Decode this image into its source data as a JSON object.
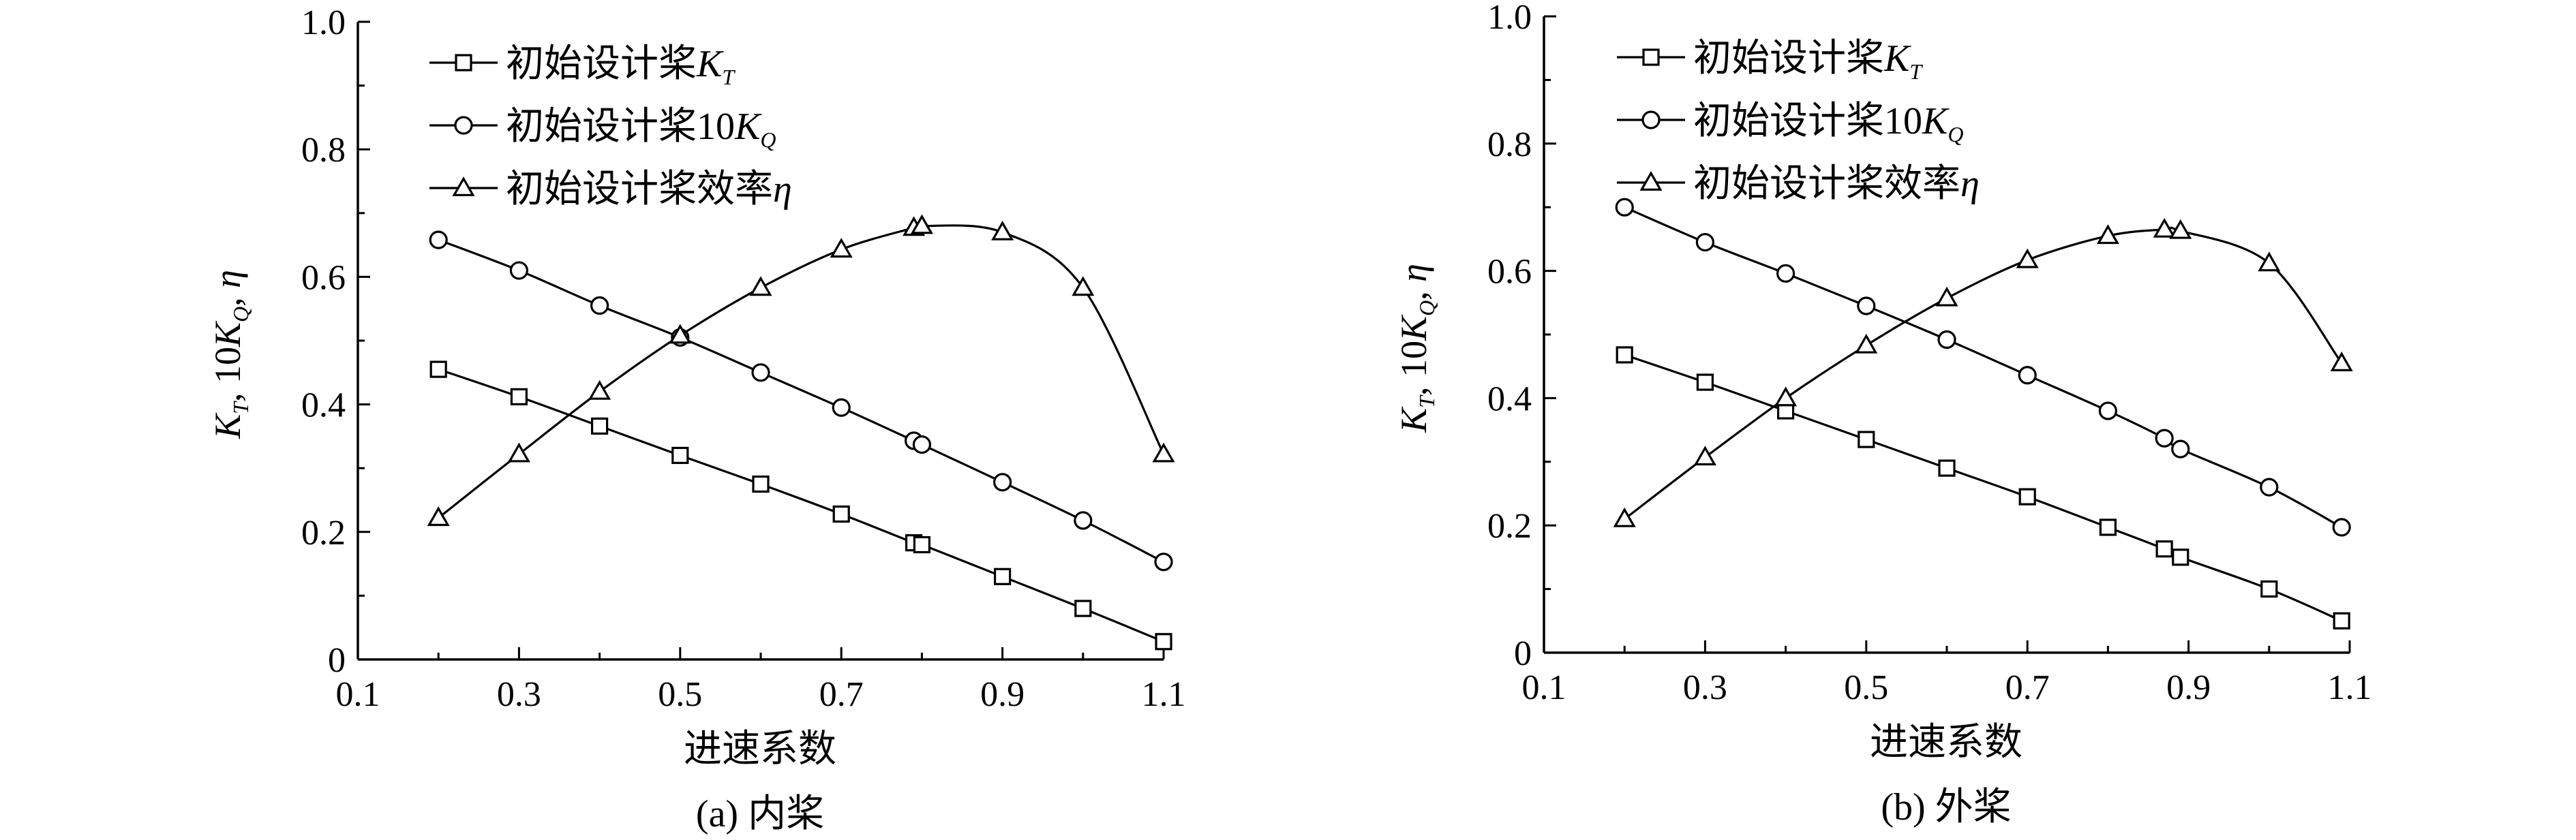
{
  "chart_data": [
    {
      "type": "line",
      "caption": "(a) 内桨",
      "xlabel": "进速系数",
      "ylabel_parts": [
        "K",
        "T",
        ", 10K",
        "Q",
        ", η"
      ],
      "xlim": [
        0.1,
        1.1
      ],
      "ylim": [
        0,
        1.0
      ],
      "xticks": [
        "0.1",
        "0.3",
        "0.5",
        "0.7",
        "0.9",
        "1.1"
      ],
      "yticks": [
        "0",
        "0.2",
        "0.4",
        "0.6",
        "0.8",
        "1.0"
      ],
      "xtick_values": [
        0.1,
        0.3,
        0.5,
        0.7,
        0.9,
        1.1
      ],
      "ytick_values": [
        0,
        0.2,
        0.4,
        0.6,
        0.8,
        1.0
      ],
      "legend_position": "top-left",
      "grid": false,
      "series": [
        {
          "name": "初始设计桨K_T",
          "legend_text": "初始设计桨",
          "legend_italic": "K",
          "legend_sub": "T",
          "marker": "square",
          "x": [
            0.2,
            0.3,
            0.4,
            0.5,
            0.6,
            0.7,
            0.79,
            0.8,
            0.9,
            1.0,
            1.1
          ],
          "y": [
            0.455,
            0.412,
            0.366,
            0.32,
            0.275,
            0.228,
            0.183,
            0.18,
            0.13,
            0.08,
            0.028
          ]
        },
        {
          "name": "初始设计桨10K_Q",
          "legend_text": "初始设计桨10",
          "legend_italic": "K",
          "legend_sub": "Q",
          "marker": "circle",
          "x": [
            0.2,
            0.3,
            0.4,
            0.5,
            0.6,
            0.7,
            0.79,
            0.8,
            0.9,
            1.0,
            1.1
          ],
          "y": [
            0.658,
            0.61,
            0.555,
            0.505,
            0.45,
            0.395,
            0.343,
            0.337,
            0.278,
            0.218,
            0.153
          ]
        },
        {
          "name": "初始设计桨效率η",
          "legend_text": "初始设计桨效率",
          "legend_italic": "η",
          "legend_sub": "",
          "marker": "triangle",
          "x": [
            0.2,
            0.3,
            0.4,
            0.5,
            0.6,
            0.7,
            0.79,
            0.8,
            0.9,
            1.0,
            1.1
          ],
          "y": [
            0.222,
            0.322,
            0.42,
            0.508,
            0.583,
            0.643,
            0.677,
            0.68,
            0.67,
            0.583,
            0.322
          ]
        }
      ]
    },
    {
      "type": "line",
      "caption": "(b) 外桨",
      "xlabel": "进速系数",
      "ylabel_parts": [
        "K",
        "T",
        ", 10K",
        "Q",
        ", η"
      ],
      "xlim": [
        0.1,
        1.1
      ],
      "ylim": [
        0,
        1.0
      ],
      "xticks": [
        "0.1",
        "0.3",
        "0.5",
        "0.7",
        "0.9",
        "1.1"
      ],
      "yticks": [
        "0",
        "0.2",
        "0.4",
        "0.6",
        "0.8",
        "1.0"
      ],
      "xtick_values": [
        0.1,
        0.3,
        0.5,
        0.7,
        0.9,
        1.1
      ],
      "ytick_values": [
        0,
        0.2,
        0.4,
        0.6,
        0.8,
        1.0
      ],
      "legend_position": "top-left",
      "grid": false,
      "series": [
        {
          "name": "初始设计桨K_T",
          "legend_text": "初始设计桨",
          "legend_italic": "K",
          "legend_sub": "T",
          "marker": "square",
          "x": [
            0.2,
            0.3,
            0.4,
            0.5,
            0.6,
            0.7,
            0.8,
            0.87,
            0.89,
            1.0,
            1.09
          ],
          "y": [
            0.468,
            0.425,
            0.38,
            0.335,
            0.29,
            0.245,
            0.197,
            0.163,
            0.15,
            0.1,
            0.05
          ]
        },
        {
          "name": "初始设计桨10K_Q",
          "legend_text": "初始设计桨10",
          "legend_italic": "K",
          "legend_sub": "Q",
          "marker": "circle",
          "x": [
            0.2,
            0.3,
            0.4,
            0.5,
            0.6,
            0.7,
            0.8,
            0.87,
            0.89,
            1.0,
            1.09
          ],
          "y": [
            0.7,
            0.645,
            0.596,
            0.545,
            0.492,
            0.436,
            0.38,
            0.337,
            0.32,
            0.26,
            0.197
          ]
        },
        {
          "name": "初始设计桨效率η",
          "legend_text": "初始设计桨效率",
          "legend_italic": "η",
          "legend_sub": "",
          "marker": "triangle",
          "x": [
            0.2,
            0.3,
            0.4,
            0.5,
            0.6,
            0.7,
            0.8,
            0.87,
            0.89,
            1.0,
            1.09
          ],
          "y": [
            0.21,
            0.307,
            0.4,
            0.483,
            0.557,
            0.617,
            0.655,
            0.665,
            0.663,
            0.612,
            0.455
          ]
        }
      ]
    }
  ]
}
